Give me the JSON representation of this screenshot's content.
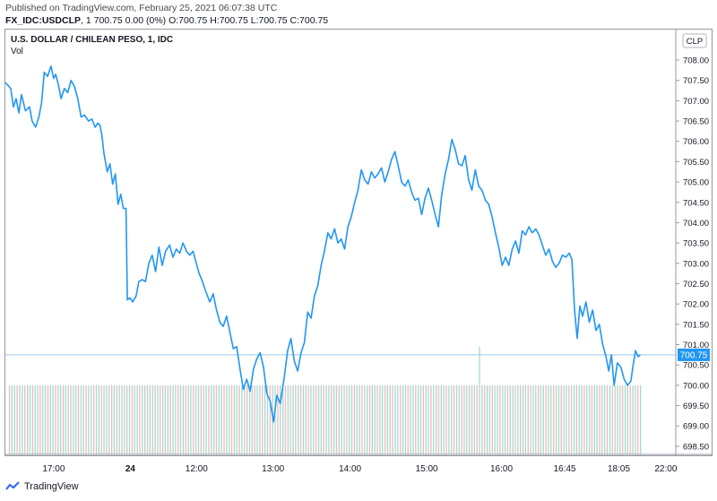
{
  "header": {
    "published": "Published on TradingView.com, February 25, 2021 06:07:38 UTC",
    "symbol": "FX_IDC:USDCLP",
    "interval": "1",
    "ohlc_text": "700.75 0.00 (0%) O:700.75 H:700.75 L:700.75 C:700.75"
  },
  "legend": {
    "title": "U.S. DOLLAR / CHILEAN PESO, 1, IDC",
    "vol": "Vol"
  },
  "currency_badge": "CLP",
  "last_price_label": "700.75",
  "footer": {
    "brand": "TradingView"
  },
  "colors": {
    "line": "#2196f3",
    "axis_text": "#131722",
    "price_tag_bg": "#2196f3",
    "vol_up": "#a8d8cf",
    "vol_down": "#f2b8b5"
  },
  "chart_data": {
    "type": "line",
    "title": "U.S. DOLLAR / CHILEAN PESO, 1, IDC",
    "xlabel": "",
    "ylabel": "",
    "ylim": [
      698.3,
      708.75
    ],
    "y_ticks": [
      "698.50",
      "699.00",
      "699.50",
      "700.00",
      "700.50",
      "701.00",
      "701.50",
      "702.00",
      "702.50",
      "703.00",
      "703.50",
      "704.00",
      "704.50",
      "705.00",
      "705.50",
      "706.00",
      "706.50",
      "707.00",
      "707.50",
      "708.00"
    ],
    "x_tick_labels": [
      "17:00",
      "24",
      "12:00",
      "13:00",
      "14:00",
      "15:00",
      "16:00",
      "16:45",
      "18:05",
      "22:00"
    ],
    "x_tick_positions": [
      0.0787,
      0.193,
      0.2919,
      0.406,
      0.5209,
      0.6352,
      0.7466,
      0.841,
      0.9218,
      0.9919
    ],
    "series": [
      {
        "values": [
          [
            0.0,
            707.45
          ],
          [
            0.008,
            707.3
          ],
          [
            0.012,
            706.85
          ],
          [
            0.016,
            707.05
          ],
          [
            0.02,
            706.7
          ],
          [
            0.024,
            707.15
          ],
          [
            0.03,
            706.75
          ],
          [
            0.036,
            706.85
          ],
          [
            0.04,
            706.5
          ],
          [
            0.045,
            706.35
          ],
          [
            0.05,
            706.6
          ],
          [
            0.054,
            706.95
          ],
          [
            0.058,
            707.7
          ],
          [
            0.063,
            707.6
          ],
          [
            0.068,
            707.85
          ],
          [
            0.072,
            707.55
          ],
          [
            0.075,
            707.65
          ],
          [
            0.079,
            707.4
          ],
          [
            0.083,
            707.05
          ],
          [
            0.088,
            707.3
          ],
          [
            0.093,
            707.2
          ],
          [
            0.098,
            707.5
          ],
          [
            0.103,
            707.35
          ],
          [
            0.108,
            707.05
          ],
          [
            0.113,
            706.6
          ],
          [
            0.118,
            706.65
          ],
          [
            0.124,
            706.5
          ],
          [
            0.129,
            706.55
          ],
          [
            0.134,
            706.35
          ],
          [
            0.138,
            706.45
          ],
          [
            0.141,
            706.4
          ],
          [
            0.144,
            706.15
          ],
          [
            0.147,
            705.7
          ],
          [
            0.152,
            705.25
          ],
          [
            0.156,
            705.45
          ],
          [
            0.16,
            704.95
          ],
          [
            0.164,
            705.2
          ],
          [
            0.168,
            704.45
          ],
          [
            0.172,
            704.7
          ],
          [
            0.176,
            704.35
          ],
          [
            0.18,
            704.35
          ],
          [
            0.182,
            702.1
          ],
          [
            0.186,
            702.15
          ],
          [
            0.19,
            702.05
          ],
          [
            0.195,
            702.2
          ],
          [
            0.199,
            702.55
          ],
          [
            0.204,
            702.6
          ],
          [
            0.209,
            702.55
          ],
          [
            0.214,
            703.0
          ],
          [
            0.219,
            703.2
          ],
          [
            0.224,
            702.8
          ],
          [
            0.229,
            703.4
          ],
          [
            0.234,
            702.95
          ],
          [
            0.239,
            703.3
          ],
          [
            0.245,
            703.45
          ],
          [
            0.25,
            703.15
          ],
          [
            0.255,
            703.35
          ],
          [
            0.26,
            703.25
          ],
          [
            0.265,
            703.5
          ],
          [
            0.27,
            703.3
          ],
          [
            0.275,
            703.2
          ],
          [
            0.28,
            703.3
          ],
          [
            0.284,
            703.05
          ],
          [
            0.289,
            702.75
          ],
          [
            0.294,
            702.55
          ],
          [
            0.299,
            702.3
          ],
          [
            0.305,
            702.05
          ],
          [
            0.31,
            702.25
          ],
          [
            0.315,
            701.85
          ],
          [
            0.32,
            701.55
          ],
          [
            0.325,
            701.45
          ],
          [
            0.33,
            701.7
          ],
          [
            0.335,
            701.3
          ],
          [
            0.34,
            700.9
          ],
          [
            0.345,
            700.95
          ],
          [
            0.35,
            700.4
          ],
          [
            0.355,
            699.9
          ],
          [
            0.36,
            700.15
          ],
          [
            0.365,
            699.85
          ],
          [
            0.37,
            700.4
          ],
          [
            0.375,
            700.65
          ],
          [
            0.38,
            700.8
          ],
          [
            0.385,
            700.45
          ],
          [
            0.39,
            699.8
          ],
          [
            0.395,
            699.6
          ],
          [
            0.4,
            699.1
          ],
          [
            0.405,
            699.75
          ],
          [
            0.41,
            699.55
          ],
          [
            0.416,
            700.2
          ],
          [
            0.421,
            700.85
          ],
          [
            0.426,
            701.15
          ],
          [
            0.431,
            700.6
          ],
          [
            0.436,
            700.35
          ],
          [
            0.441,
            700.8
          ],
          [
            0.446,
            701.05
          ],
          [
            0.451,
            701.8
          ],
          [
            0.456,
            701.65
          ],
          [
            0.461,
            702.2
          ],
          [
            0.466,
            702.45
          ],
          [
            0.471,
            702.95
          ],
          [
            0.476,
            703.3
          ],
          [
            0.481,
            703.75
          ],
          [
            0.486,
            703.6
          ],
          [
            0.491,
            703.85
          ],
          [
            0.496,
            703.5
          ],
          [
            0.501,
            703.6
          ],
          [
            0.506,
            703.35
          ],
          [
            0.511,
            703.9
          ],
          [
            0.516,
            704.15
          ],
          [
            0.521,
            704.5
          ],
          [
            0.526,
            704.8
          ],
          [
            0.531,
            705.3
          ],
          [
            0.536,
            705.05
          ],
          [
            0.541,
            704.95
          ],
          [
            0.546,
            705.25
          ],
          [
            0.551,
            705.1
          ],
          [
            0.556,
            705.2
          ],
          [
            0.561,
            705.35
          ],
          [
            0.566,
            705.0
          ],
          [
            0.571,
            705.25
          ],
          [
            0.576,
            705.55
          ],
          [
            0.581,
            705.75
          ],
          [
            0.586,
            705.4
          ],
          [
            0.591,
            705.0
          ],
          [
            0.596,
            704.9
          ],
          [
            0.601,
            705.05
          ],
          [
            0.606,
            704.75
          ],
          [
            0.611,
            704.55
          ],
          [
            0.616,
            704.6
          ],
          [
            0.621,
            704.2
          ],
          [
            0.626,
            704.6
          ],
          [
            0.631,
            704.85
          ],
          [
            0.636,
            704.55
          ],
          [
            0.641,
            704.2
          ],
          [
            0.646,
            703.9
          ],
          [
            0.651,
            704.7
          ],
          [
            0.656,
            705.2
          ],
          [
            0.661,
            705.55
          ],
          [
            0.666,
            706.05
          ],
          [
            0.671,
            705.8
          ],
          [
            0.676,
            705.45
          ],
          [
            0.681,
            705.4
          ],
          [
            0.686,
            705.65
          ],
          [
            0.691,
            705.05
          ],
          [
            0.696,
            704.8
          ],
          [
            0.701,
            705.3
          ],
          [
            0.706,
            704.9
          ],
          [
            0.711,
            704.8
          ],
          [
            0.716,
            704.55
          ],
          [
            0.721,
            704.45
          ],
          [
            0.726,
            704.15
          ],
          [
            0.731,
            703.75
          ],
          [
            0.736,
            703.4
          ],
          [
            0.741,
            702.95
          ],
          [
            0.746,
            703.15
          ],
          [
            0.751,
            702.95
          ],
          [
            0.756,
            703.35
          ],
          [
            0.761,
            703.55
          ],
          [
            0.766,
            703.25
          ],
          [
            0.771,
            703.8
          ],
          [
            0.776,
            703.7
          ],
          [
            0.781,
            703.9
          ],
          [
            0.786,
            703.75
          ],
          [
            0.791,
            703.85
          ],
          [
            0.796,
            703.7
          ],
          [
            0.801,
            703.45
          ],
          [
            0.806,
            703.2
          ],
          [
            0.811,
            703.35
          ],
          [
            0.816,
            703.05
          ],
          [
            0.821,
            702.9
          ],
          [
            0.826,
            703.0
          ],
          [
            0.831,
            703.2
          ],
          [
            0.836,
            703.15
          ],
          [
            0.841,
            703.25
          ],
          [
            0.845,
            703.1
          ],
          [
            0.849,
            701.85
          ],
          [
            0.853,
            701.15
          ],
          [
            0.857,
            701.95
          ],
          [
            0.861,
            701.7
          ],
          [
            0.866,
            702.05
          ],
          [
            0.871,
            701.55
          ],
          [
            0.876,
            701.85
          ],
          [
            0.881,
            701.35
          ],
          [
            0.886,
            701.5
          ],
          [
            0.891,
            701.0
          ],
          [
            0.896,
            700.7
          ],
          [
            0.9,
            700.35
          ],
          [
            0.904,
            700.75
          ],
          [
            0.908,
            700.0
          ],
          [
            0.913,
            700.55
          ],
          [
            0.918,
            700.45
          ],
          [
            0.923,
            700.15
          ],
          [
            0.928,
            700.0
          ],
          [
            0.933,
            700.1
          ],
          [
            0.936,
            700.45
          ],
          [
            0.94,
            700.85
          ],
          [
            0.944,
            700.7
          ],
          [
            0.947,
            700.75
          ]
        ]
      }
    ],
    "volume": {
      "baseline": 698.3,
      "typical_top": 700.0,
      "spike_x": 0.706,
      "spike_top": 700.95
    }
  }
}
